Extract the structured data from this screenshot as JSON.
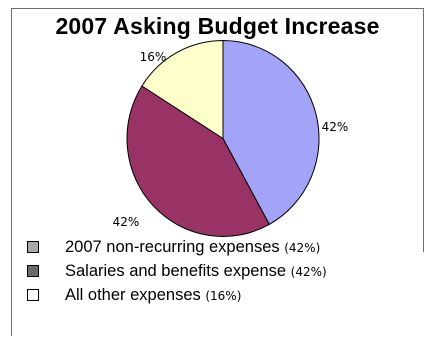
{
  "chart_data": {
    "type": "pie",
    "title": "2007 Asking Budget Increase",
    "slices": [
      {
        "label": "2007 non-recurring expenses",
        "value": 42,
        "value_label": "42%",
        "legend_pct": "(42%)",
        "color": "#a3a3f8",
        "legend_swatch_color": "#a9a9a9"
      },
      {
        "label": "Salaries and benefits expense",
        "value": 42,
        "value_label": "42%",
        "legend_pct": "(42%)",
        "color": "#993366",
        "legend_swatch_color": "#6b6b6b"
      },
      {
        "label": "All other expenses",
        "value": 16,
        "value_label": "16%",
        "legend_pct": "(16%)",
        "color": "#ffffcc",
        "legend_swatch_color": "#ffffff"
      }
    ],
    "legend_position": "bottom-left",
    "start_angle": "12 o'clock",
    "direction": "clockwise"
  }
}
